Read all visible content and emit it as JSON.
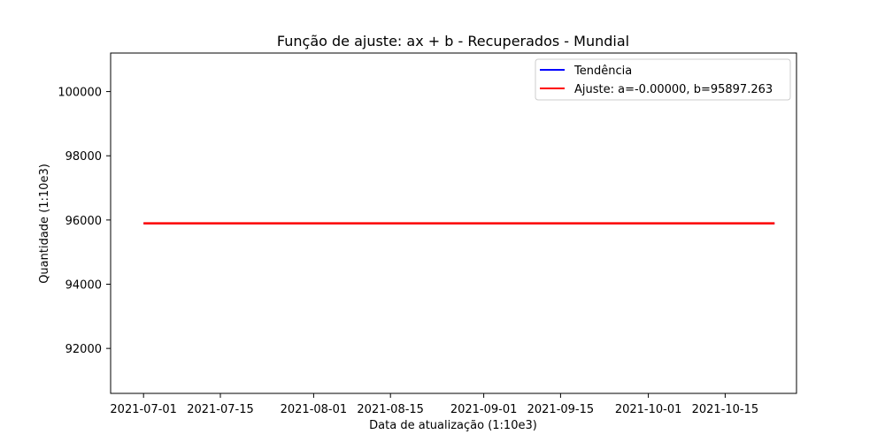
{
  "chart_data": {
    "type": "line",
    "title": "Função de ajuste: ax + b - Recuperados - Mundial",
    "xlabel": "Data de atualização (1:10e3)",
    "ylabel": "Quantidade (1:10e3)",
    "xlim": [
      "2021-06-25",
      "2021-10-28"
    ],
    "ylim": [
      90600,
      101200
    ],
    "x_ticks": [
      "2021-07-01",
      "2021-07-15",
      "2021-08-01",
      "2021-08-15",
      "2021-09-01",
      "2021-09-15",
      "2021-10-01",
      "2021-10-15"
    ],
    "y_ticks": [
      92000,
      94000,
      96000,
      98000,
      100000
    ],
    "y_tick_labels": [
      "92000",
      "94000",
      "96000",
      "98000",
      "100000"
    ],
    "legend_position": "top-right",
    "series": [
      {
        "name": "Tendência",
        "color": "#0000ff",
        "x": [
          "2021-07-01",
          "2021-10-24"
        ],
        "y": [
          95897.263,
          95897.263
        ]
      },
      {
        "name": "Ajuste: a=-0.00000, b=95897.263",
        "color": "#ff0000",
        "x": [
          "2021-07-01",
          "2021-10-24"
        ],
        "y": [
          95897.263,
          95897.263
        ]
      }
    ]
  }
}
